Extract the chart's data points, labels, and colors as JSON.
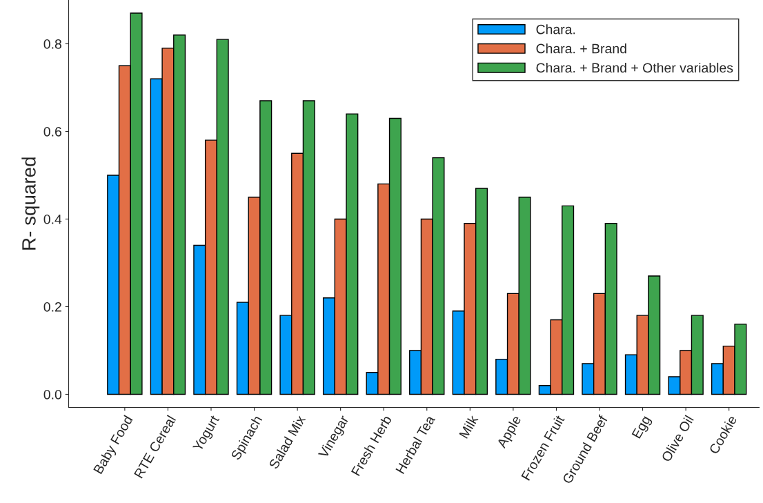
{
  "chart_data": {
    "type": "bar",
    "ylabel": "R- squared",
    "categories": [
      "Baby Food",
      "RTE Cereal",
      "Yogurt",
      "Spinach",
      "Salad Mix",
      "Vinegar",
      "Fresh Herb",
      "Herbal Tea",
      "Milk",
      "Apple",
      "Frozen Fruit",
      "Ground Beef",
      "Egg",
      "Olive Oil",
      "Cookie"
    ],
    "series": [
      {
        "name": "Chara.",
        "color": "#009af9",
        "values": [
          0.5,
          0.72,
          0.34,
          0.21,
          0.18,
          0.22,
          0.05,
          0.1,
          0.19,
          0.08,
          0.02,
          0.07,
          0.09,
          0.04,
          0.07
        ]
      },
      {
        "name": "Chara. + Brand",
        "color": "#e26f46",
        "values": [
          0.75,
          0.79,
          0.58,
          0.45,
          0.55,
          0.4,
          0.48,
          0.4,
          0.39,
          0.23,
          0.17,
          0.23,
          0.18,
          0.1,
          0.11
        ]
      },
      {
        "name": "Chara. + Brand + Other variables",
        "color": "#3ea44e",
        "values": [
          0.87,
          0.82,
          0.81,
          0.67,
          0.67,
          0.64,
          0.63,
          0.54,
          0.47,
          0.45,
          0.43,
          0.39,
          0.27,
          0.18,
          0.16
        ]
      }
    ],
    "ylim": [
      -0.03,
      0.9
    ],
    "yticks": [
      {
        "value": 0,
        "label": "0.0"
      },
      0.2,
      0.4,
      0.6,
      0.8
    ],
    "grid": false,
    "legend": "top right"
  }
}
